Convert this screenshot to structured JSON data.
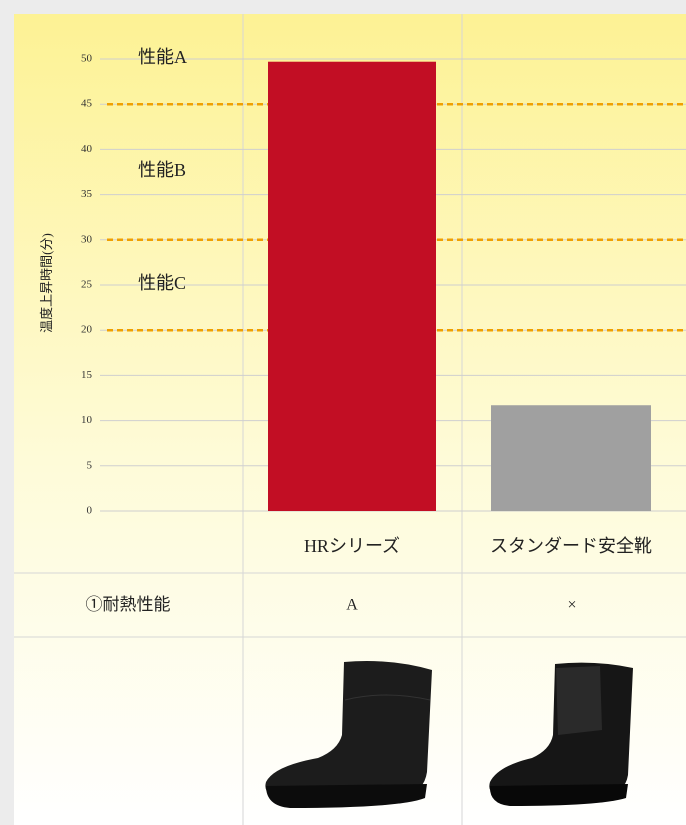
{
  "chart_data": {
    "type": "bar",
    "y_label": "温度上昇時間(分)",
    "categories": [
      "HRシリーズ",
      "スタンダード安全靴"
    ],
    "values": [
      49.7,
      11.7
    ],
    "colors": [
      "#c20e24",
      "#a0a0a0"
    ],
    "ylim": [
      0,
      50
    ],
    "yticks": [
      0,
      5,
      10,
      15,
      20,
      25,
      30,
      35,
      40,
      45,
      50
    ],
    "grid": true,
    "thresholds": [
      {
        "value": 45,
        "label": "性能A"
      },
      {
        "value": 30,
        "label": "性能B"
      },
      {
        "value": 20,
        "label": "性能C"
      }
    ],
    "threshold_color": "#f0a000"
  },
  "table": {
    "rows": [
      [
        "①耐熱性能",
        "A",
        "×"
      ]
    ]
  }
}
